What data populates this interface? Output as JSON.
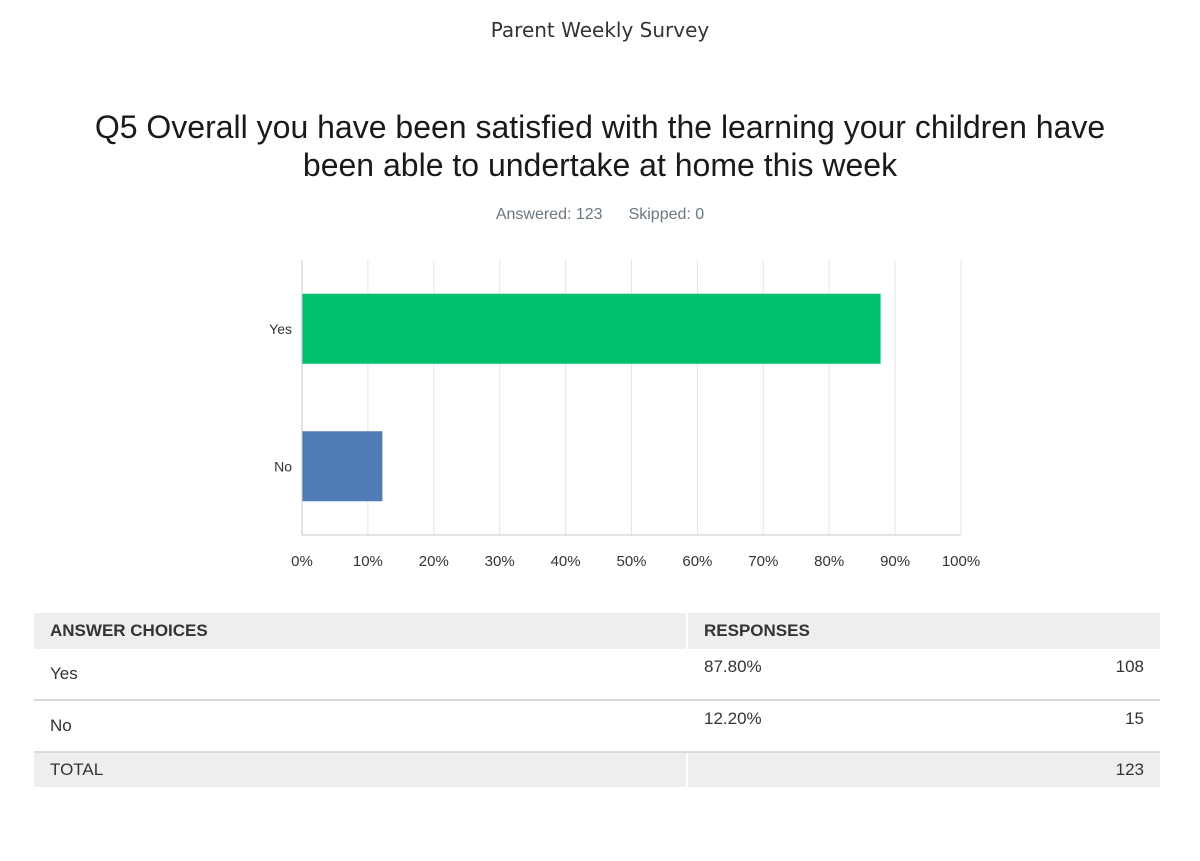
{
  "survey_title": "Parent Weekly Survey",
  "question": {
    "line1": "Q5 Overall you have been satisfied with the learning your children have",
    "line2": "been able to undertake at home this week"
  },
  "stats": {
    "answered_label": "Answered: 123",
    "skipped_label": "Skipped: 0"
  },
  "chart_data": {
    "type": "bar",
    "orientation": "horizontal",
    "categories": [
      "Yes",
      "No"
    ],
    "values": [
      87.8,
      12.2
    ],
    "colors": [
      "#00bf6f",
      "#507cb6"
    ],
    "xlim": [
      0,
      100
    ],
    "ticks": [
      "0%",
      "10%",
      "20%",
      "30%",
      "40%",
      "50%",
      "60%",
      "70%",
      "80%",
      "90%",
      "100%"
    ],
    "grid": true,
    "title": "",
    "xlabel": "",
    "ylabel": ""
  },
  "table": {
    "headers": [
      "ANSWER CHOICES",
      "RESPONSES"
    ],
    "rows": [
      {
        "choice": "Yes",
        "percent": "87.80%",
        "count": "108"
      },
      {
        "choice": "No",
        "percent": "12.20%",
        "count": "15"
      }
    ],
    "total": {
      "label": "TOTAL",
      "count": "123"
    }
  }
}
